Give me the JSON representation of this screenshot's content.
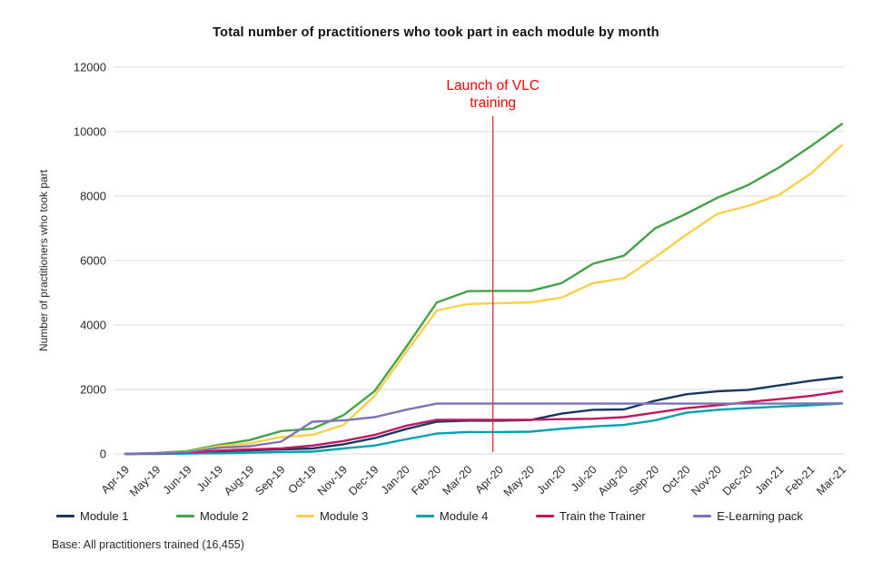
{
  "footnote": "Base: All practitioners trained (16,455)",
  "chart_data": {
    "type": "line",
    "title": "Total number of practitioners who took part in each module by month",
    "ylabel": "Number of practitioners who took part",
    "xlabel": "",
    "ylim": [
      0,
      12000
    ],
    "y_ticks": [
      0,
      2000,
      4000,
      6000,
      8000,
      10000,
      12000
    ],
    "grid": "horizontal",
    "grid_color": "#D9D9D9",
    "legend_position": "bottom",
    "x": [
      "Apr-19",
      "May-19",
      "Jun-19",
      "Jul-19",
      "Aug-19",
      "Sep-19",
      "Oct-19",
      "Nov-19",
      "Dec-19",
      "Jan-20",
      "Feb-20",
      "Mar-20",
      "Apr-20",
      "May-20",
      "Jun-20",
      "Jul-20",
      "Aug-20",
      "Sep-20",
      "Oct-20",
      "Nov-20",
      "Dec-20",
      "Jan-21",
      "Feb-21",
      "Mar-21"
    ],
    "series": [
      {
        "name": "Module 1",
        "color": "#17375E",
        "values": [
          0,
          10,
          30,
          80,
          110,
          140,
          170,
          300,
          490,
          770,
          1000,
          1030,
          1030,
          1050,
          1250,
          1370,
          1380,
          1650,
          1850,
          1940,
          1990,
          2130,
          2270,
          2380
        ]
      },
      {
        "name": "Module 2",
        "color": "#44A248",
        "values": [
          0,
          30,
          90,
          280,
          430,
          710,
          780,
          1200,
          1950,
          3300,
          4700,
          5050,
          5060,
          5060,
          5300,
          5900,
          6150,
          7000,
          7450,
          7950,
          8350,
          8900,
          9550,
          10240
        ]
      },
      {
        "name": "Module 3",
        "color": "#FBCF49",
        "values": [
          0,
          20,
          70,
          240,
          330,
          520,
          590,
          900,
          1800,
          3150,
          4450,
          4650,
          4680,
          4700,
          4850,
          5300,
          5450,
          6100,
          6800,
          7450,
          7700,
          8050,
          8700,
          9580
        ]
      },
      {
        "name": "Module 4",
        "color": "#00A3AD",
        "values": [
          0,
          0,
          10,
          20,
          40,
          60,
          70,
          170,
          260,
          450,
          630,
          680,
          680,
          690,
          780,
          850,
          900,
          1040,
          1280,
          1370,
          1420,
          1470,
          1510,
          1560
        ]
      },
      {
        "name": "Train the Trainer",
        "color": "#C0175D",
        "values": [
          0,
          10,
          40,
          100,
          140,
          170,
          260,
          400,
          590,
          870,
          1060,
          1060,
          1060,
          1060,
          1080,
          1090,
          1140,
          1280,
          1420,
          1510,
          1610,
          1700,
          1800,
          1940
        ]
      },
      {
        "name": "E-Learning pack",
        "color": "#7B72B8",
        "values": [
          0,
          20,
          60,
          190,
          240,
          380,
          1000,
          1040,
          1140,
          1370,
          1560,
          1560,
          1560,
          1560,
          1560,
          1560,
          1560,
          1560,
          1560,
          1560,
          1560,
          1560,
          1565,
          1570
        ]
      }
    ],
    "annotation": {
      "lines": [
        "Launch of VLC",
        "training"
      ],
      "month": "Apr-20",
      "text_color": "#FF0000",
      "line_color": "#E03030"
    }
  }
}
